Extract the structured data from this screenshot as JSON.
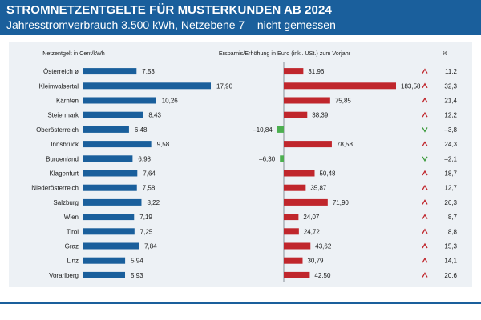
{
  "header": {
    "title": "STROMNETZENTGELTE FÜR MUSTERKUNDEN AB 2024",
    "subtitle": "Jahresstromverbrauch 3.500 kWh, Netzebene 7 – nicht gemessen"
  },
  "colors": {
    "header_bg": "#1a5f9c",
    "panel_bg": "#edf1f5",
    "blue_bar": "#1a5f9c",
    "red_bar": "#c0262c",
    "green_bar": "#4caf50",
    "arrow_up": "#c0262c",
    "arrow_down": "#3a9a3a"
  },
  "chart_data": {
    "type": "bar",
    "column_headers": {
      "netzentgelt": "Netzentgelt in Cent/kWh",
      "change": "Ersparnis/Erhöhung in Euro (inkl. USt.) zum Vorjahr",
      "percent": "%"
    },
    "categories": [
      "Österreich ø",
      "Kleinwalsertal",
      "Kärnten",
      "Steiermark",
      "Oberösterreich",
      "Innsbruck",
      "Burgenland",
      "Klagenfurt",
      "Niederösterreich",
      "Salzburg",
      "Wien",
      "Tirol",
      "Graz",
      "Linz",
      "Vorarlberg"
    ],
    "series": [
      {
        "name": "Netzentgelt in Cent/kWh",
        "values": [
          7.53,
          17.9,
          10.26,
          8.43,
          6.48,
          9.58,
          6.98,
          7.64,
          7.58,
          8.22,
          7.19,
          7.25,
          7.84,
          5.94,
          5.93
        ],
        "labels": [
          "7,53",
          "17,90",
          "10,26",
          "8,43",
          "6,48",
          "9,58",
          "6,98",
          "7,64",
          "7,58",
          "8,22",
          "7,19",
          "7,25",
          "7,84",
          "5,94",
          "5,93"
        ]
      },
      {
        "name": "Ersparnis/Erhöhung in Euro (inkl. USt.) zum Vorjahr",
        "values": [
          31.96,
          183.58,
          75.85,
          38.39,
          -10.84,
          78.58,
          -6.3,
          50.48,
          35.87,
          71.9,
          24.07,
          24.72,
          43.62,
          30.79,
          42.5
        ],
        "labels": [
          "31,96",
          "183,58",
          "75,85",
          "38,39",
          "–10,84",
          "78,58",
          "–6,30",
          "50,48",
          "35,87",
          "71,90",
          "24,07",
          "24,72",
          "43,62",
          "30,79",
          "42,50"
        ]
      },
      {
        "name": "%",
        "values": [
          11.2,
          32.3,
          21.4,
          12.2,
          -3.8,
          24.3,
          -2.1,
          18.7,
          12.7,
          26.3,
          8.7,
          8.8,
          15.3,
          14.1,
          20.6
        ],
        "labels": [
          "11,2",
          "32,3",
          "21,4",
          "12,2",
          "–3,8",
          "24,3",
          "–2,1",
          "18,7",
          "12,7",
          "26,3",
          "8,7",
          "8,8",
          "15,3",
          "14,1",
          "20,6"
        ]
      }
    ],
    "trend": [
      "up",
      "up",
      "up",
      "up",
      "down",
      "up",
      "down",
      "up",
      "up",
      "up",
      "up",
      "up",
      "up",
      "up",
      "up"
    ]
  }
}
